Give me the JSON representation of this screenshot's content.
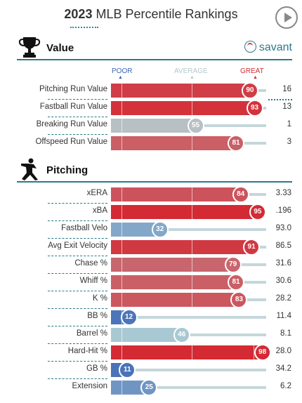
{
  "title": {
    "year": "2023",
    "text": "MLB Percentile Rankings"
  },
  "colors": {
    "accent": "#2a7a8a",
    "great": "#d42a34",
    "poor": "#3a64b4",
    "average": "#b3d3d6"
  },
  "scale": {
    "poor": "POOR",
    "average": "AVERAGE",
    "great": "GREAT"
  },
  "brand": "savant",
  "sections": [
    {
      "title": "Value",
      "icon": "trophy-icon",
      "rows": [
        {
          "label": "Pitching Run Value",
          "percentile": 90,
          "value": "16"
        },
        {
          "label": "Fastball Run Value",
          "percentile": 93,
          "value": "13"
        },
        {
          "label": "Breaking Run Value",
          "percentile": 55,
          "value": "1"
        },
        {
          "label": "Offspeed Run Value",
          "percentile": 81,
          "value": "3"
        }
      ]
    },
    {
      "title": "Pitching",
      "icon": "pitcher-icon",
      "rows": [
        {
          "label": "xERA",
          "percentile": 84,
          "value": "3.33"
        },
        {
          "label": "xBA",
          "percentile": 95,
          "value": ".196"
        },
        {
          "label": "Fastball Velo",
          "percentile": 32,
          "value": "93.0"
        },
        {
          "label": "Avg Exit Velocity",
          "percentile": 91,
          "value": "86.5"
        },
        {
          "label": "Chase %",
          "percentile": 79,
          "value": "31.6"
        },
        {
          "label": "Whiff %",
          "percentile": 81,
          "value": "30.6"
        },
        {
          "label": "K %",
          "percentile": 83,
          "value": "28.2"
        },
        {
          "label": "BB %",
          "percentile": 12,
          "value": "11.4"
        },
        {
          "label": "Barrel %",
          "percentile": 46,
          "value": "8.1"
        },
        {
          "label": "Hard-Hit %",
          "percentile": 98,
          "value": "28.0"
        },
        {
          "label": "GB %",
          "percentile": 11,
          "value": "34.2"
        },
        {
          "label": "Extension",
          "percentile": 25,
          "value": "6.2"
        }
      ]
    }
  ]
}
